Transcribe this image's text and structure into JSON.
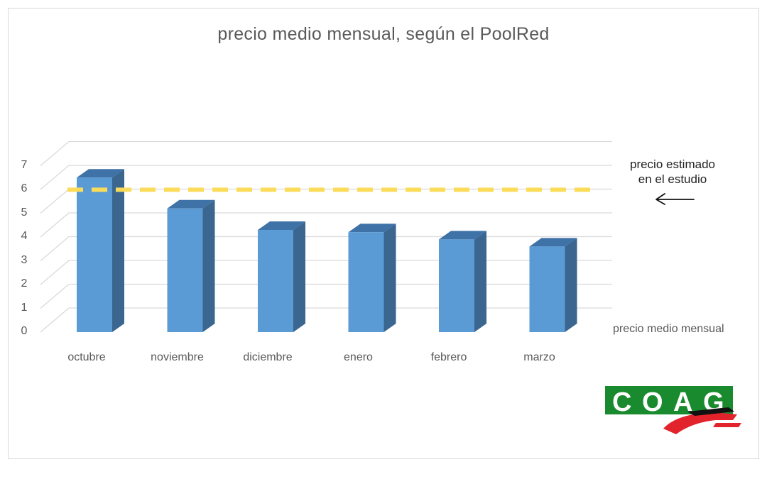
{
  "chart_data": {
    "type": "bar",
    "title": "precio medio mensual, según el PoolRed",
    "categories": [
      "octubre",
      "noviembre",
      "diciembre",
      "enero",
      "febrero",
      "marzo"
    ],
    "series": [
      {
        "name": "precio medio mensual",
        "values": [
          6.5,
          5.2,
          4.3,
          4.2,
          3.9,
          3.6
        ]
      }
    ],
    "ylim": [
      0,
      7
    ],
    "yticks": [
      "0",
      "1",
      "2",
      "3",
      "4",
      "5",
      "6",
      "7"
    ],
    "reference_line": {
      "value": 5.9,
      "label": "precio estimado\nen el estudio",
      "style": "dashed"
    },
    "grid": true,
    "legend": "bottom-right",
    "colors": {
      "bar": "#5b9bd5",
      "reference": "#fbdc5a",
      "grid": "#d9d9d9"
    }
  },
  "annotation": {
    "label": "precio estimado\nen el estudio",
    "arrow": "←"
  },
  "logo": {
    "text": "COAG",
    "bg": "#1a8a2e",
    "accent": "#e3232c"
  }
}
